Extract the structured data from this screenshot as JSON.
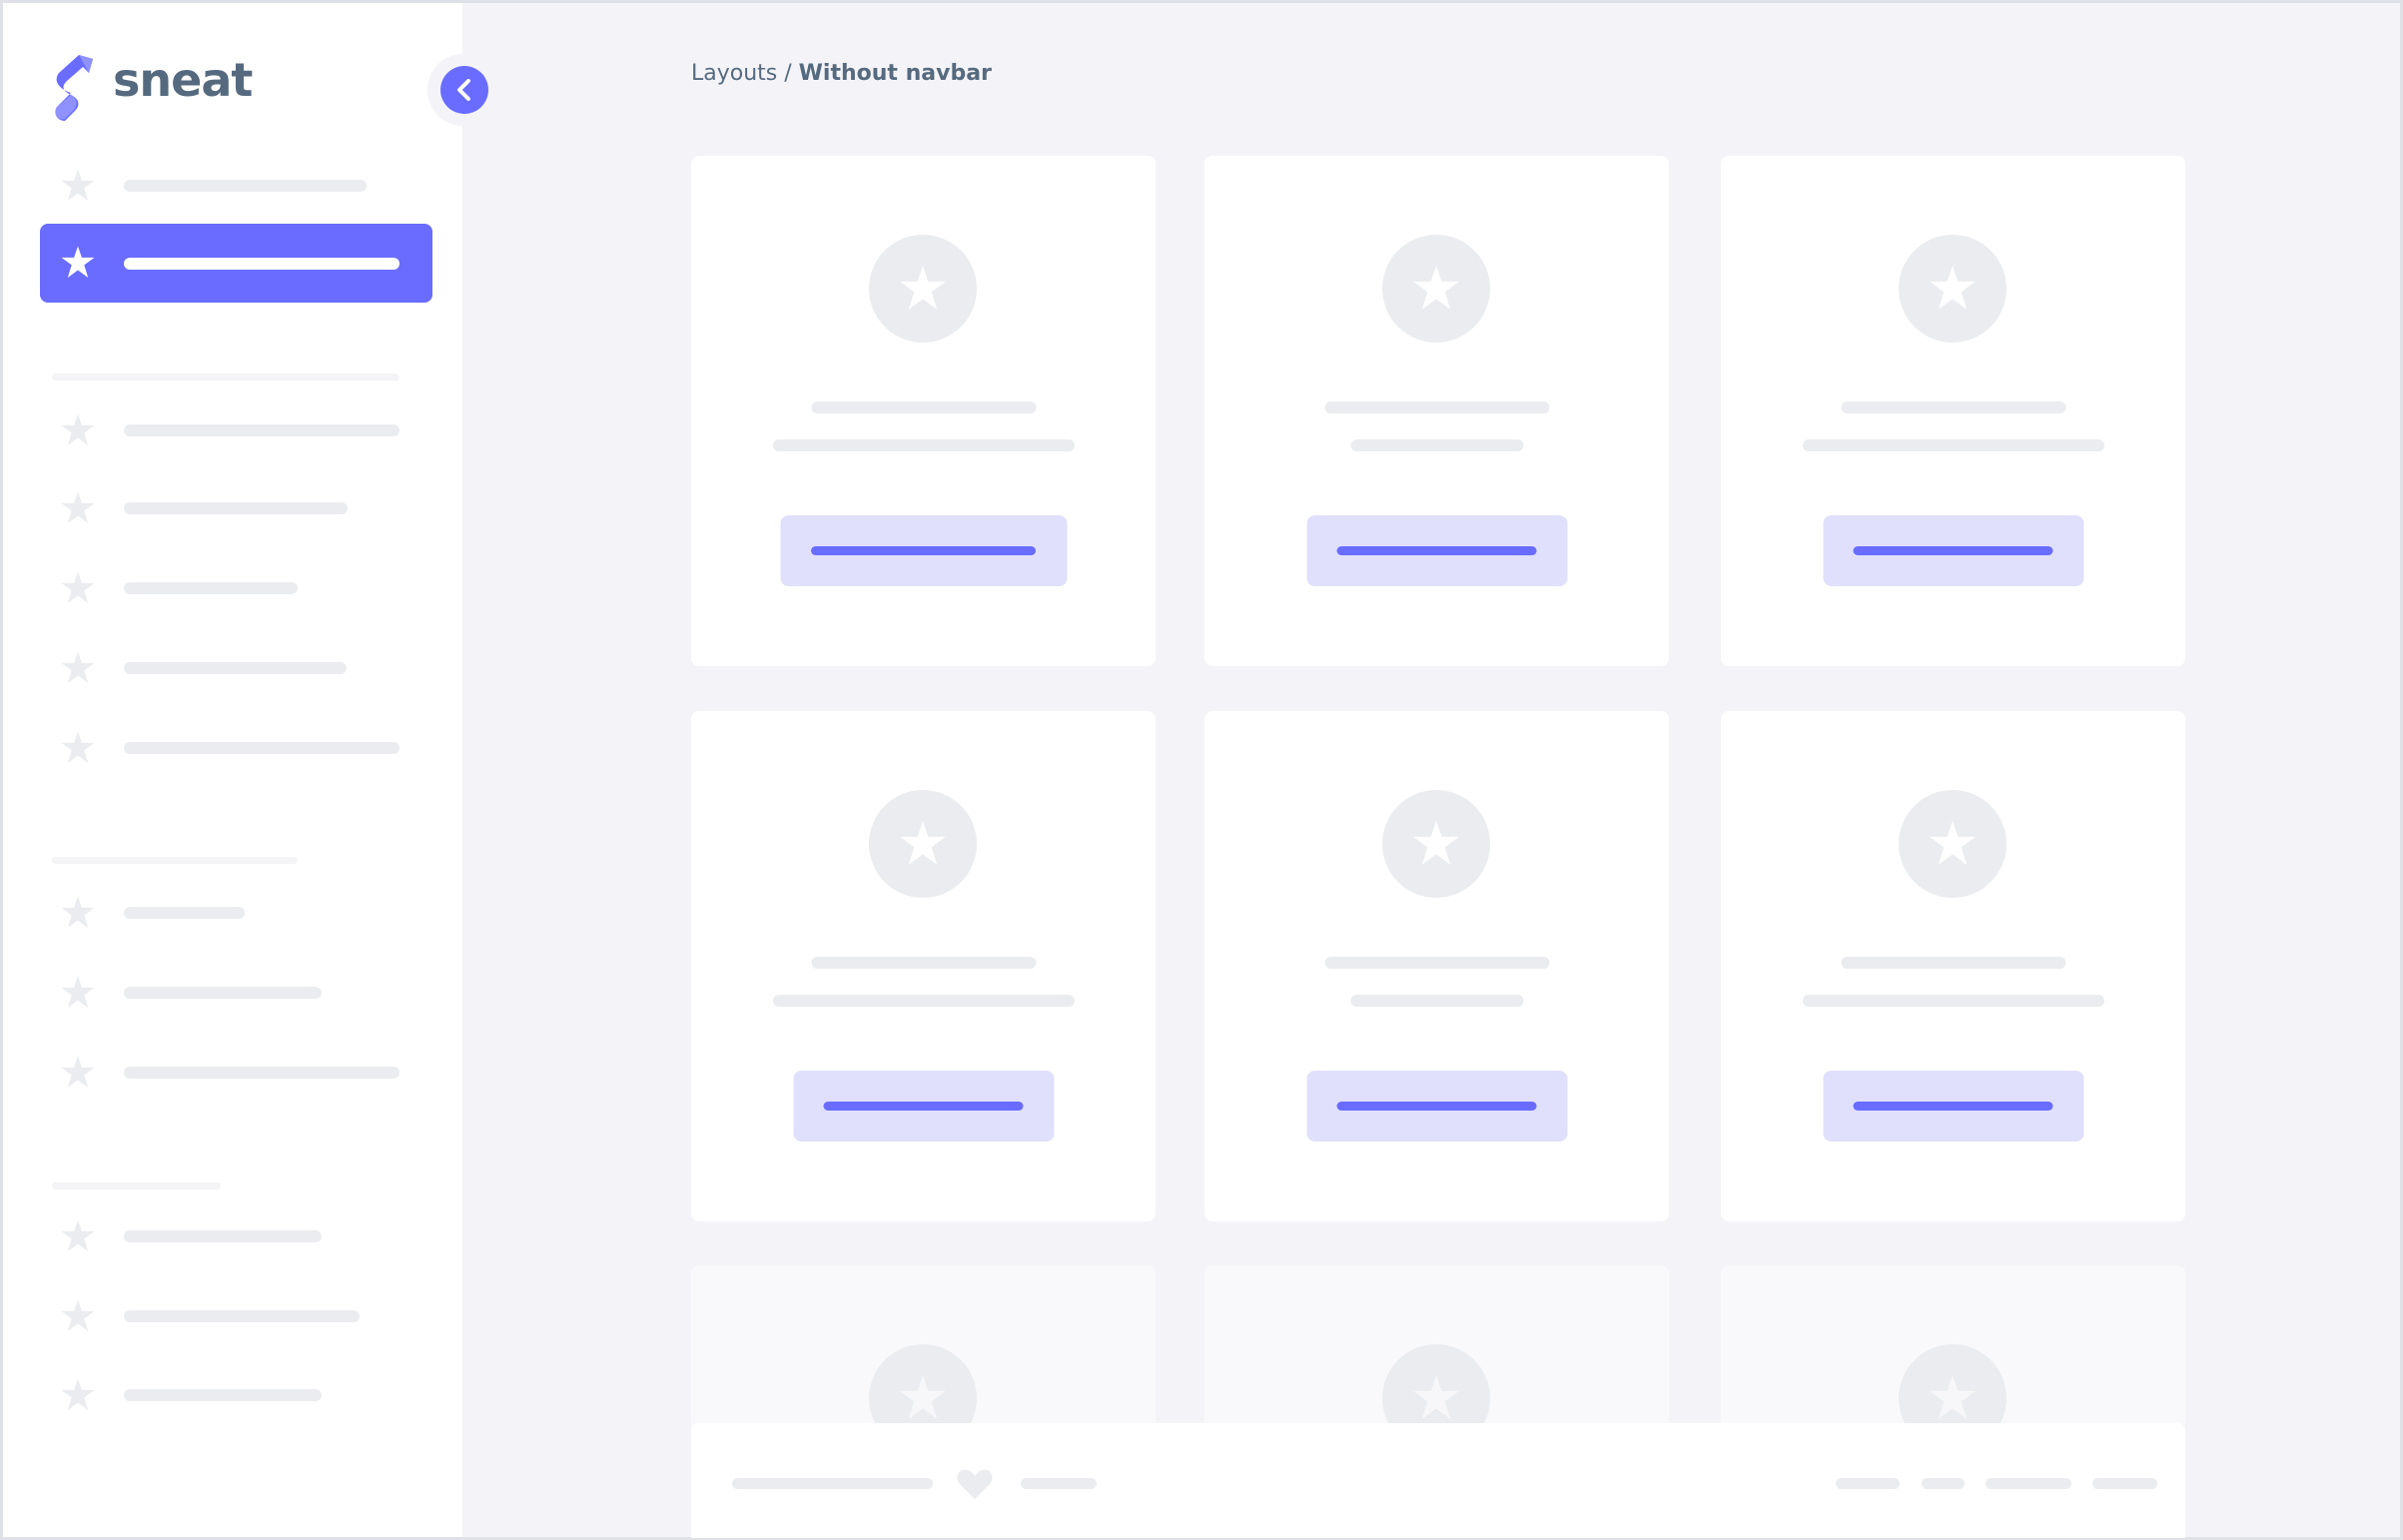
{
  "brand": {
    "name": "sneat",
    "logo_icon": "sneat-logo",
    "accent": "#696cff"
  },
  "sidebar": {
    "toggle_icon": "chevron-left-icon",
    "active_index": 1
  },
  "breadcrumb": {
    "parent": "Layouts",
    "separator": " / ",
    "current": "Without navbar"
  },
  "footer": {
    "icon": "heart-icon"
  }
}
